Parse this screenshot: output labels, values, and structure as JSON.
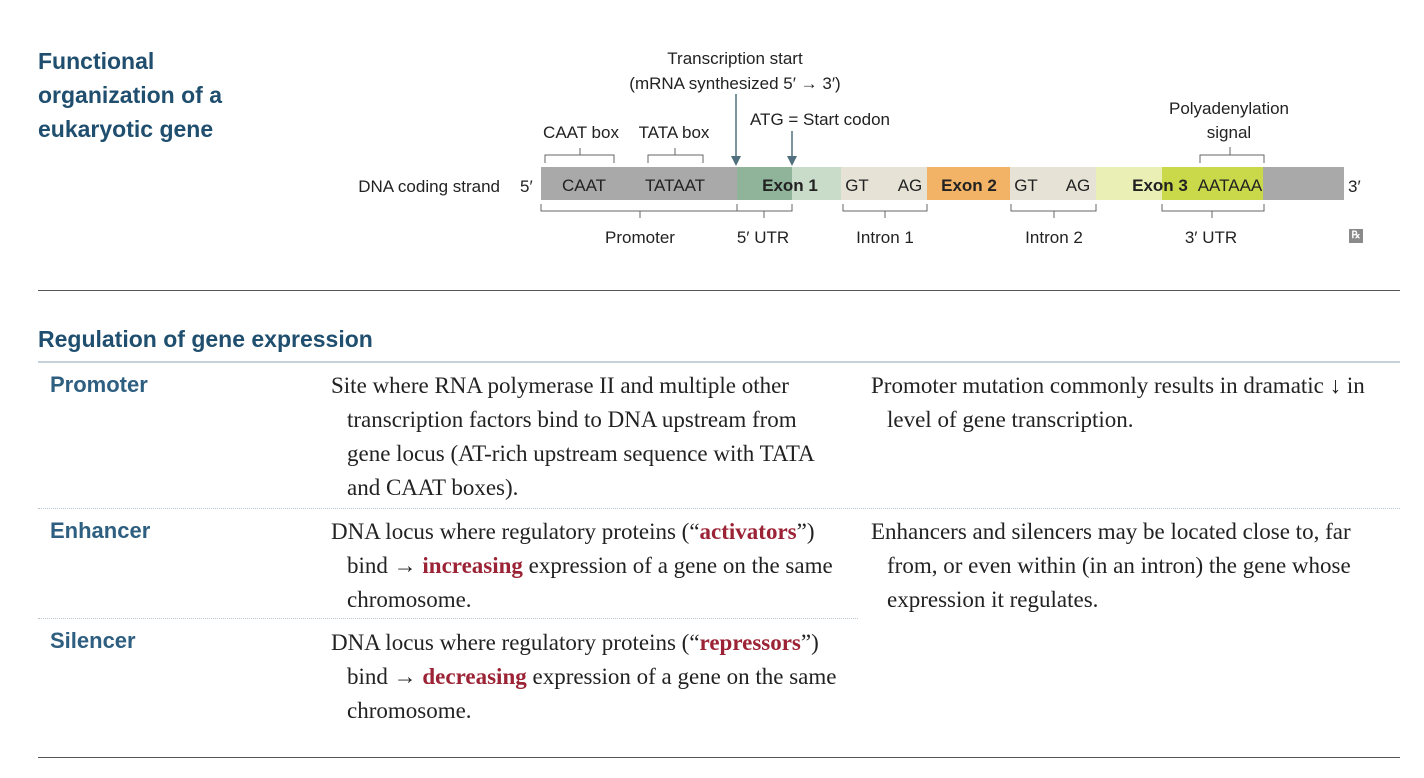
{
  "heading": {
    "line1": "Functional",
    "line2": "organization of a",
    "line3": "eukaryotic gene"
  },
  "diagram": {
    "strand_label": "DNA coding strand",
    "end_5": "5′",
    "end_3": "3′",
    "caat_box_label": "CAAT box",
    "tata_box_label": "TATA box",
    "caat_seq": "CAAT",
    "tata_seq": "TATAAT",
    "transcription_start_line1": "Transcription start",
    "transcription_start_line2": "(mRNA synthesized 5′ → 3′)",
    "atg_label": "ATG = Start codon",
    "polya_line1": "Polyadenylation",
    "polya_line2": "signal",
    "exon1": "Exon 1",
    "exon2": "Exon 2",
    "exon3": "Exon 3",
    "gt1": "GT",
    "ag1": "AG",
    "gt2": "GT",
    "ag2": "AG",
    "aataaa": "AATAAA",
    "promoter_label": "Promoter",
    "utr5_label": "5′ UTR",
    "intron1_label": "Intron 1",
    "intron2_label": "Intron 2",
    "utr3_label": "3′ UTR",
    "colors": {
      "promoter": "#a9a9a9",
      "exon1_dark": "#8fb49a",
      "exon1_light": "#c9dcc9",
      "intron": "#e6e3d6",
      "exon2": "#f2b366",
      "exon3_light": "#e9efb5",
      "exon3": "#c9d94a",
      "tail": "#a9a9a9"
    },
    "rx_icon": "rx-icon"
  },
  "regulation": {
    "title": "Regulation of gene expression",
    "rows": [
      {
        "term": "Promoter",
        "description": "Site where RNA polymerase II and multiple other transcription factors bind to DNA upstream from gene locus (AT-rich upstream sequence with TATA and CAAT boxes).",
        "note": "Promoter mutation commonly results in dramatic ↓ in level of gene transcription."
      },
      {
        "term": "Enhancer",
        "desc_a": "DNA locus where regulatory proteins (“",
        "desc_b": "activators",
        "desc_c": "”) bind → ",
        "desc_d": "increasing",
        "desc_e": " expression of a gene on the same chromosome.",
        "note": "Enhancers and silencers may be located close to, far from, or even within (in an intron) the gene whose expression it regulates."
      },
      {
        "term": "Silencer",
        "desc_a": "DNA locus where regulatory proteins (“",
        "desc_b": "repressors",
        "desc_c": "”) bind → ",
        "desc_d": "decreasing",
        "desc_e": " expression of a gene on the same chromosome."
      }
    ]
  }
}
